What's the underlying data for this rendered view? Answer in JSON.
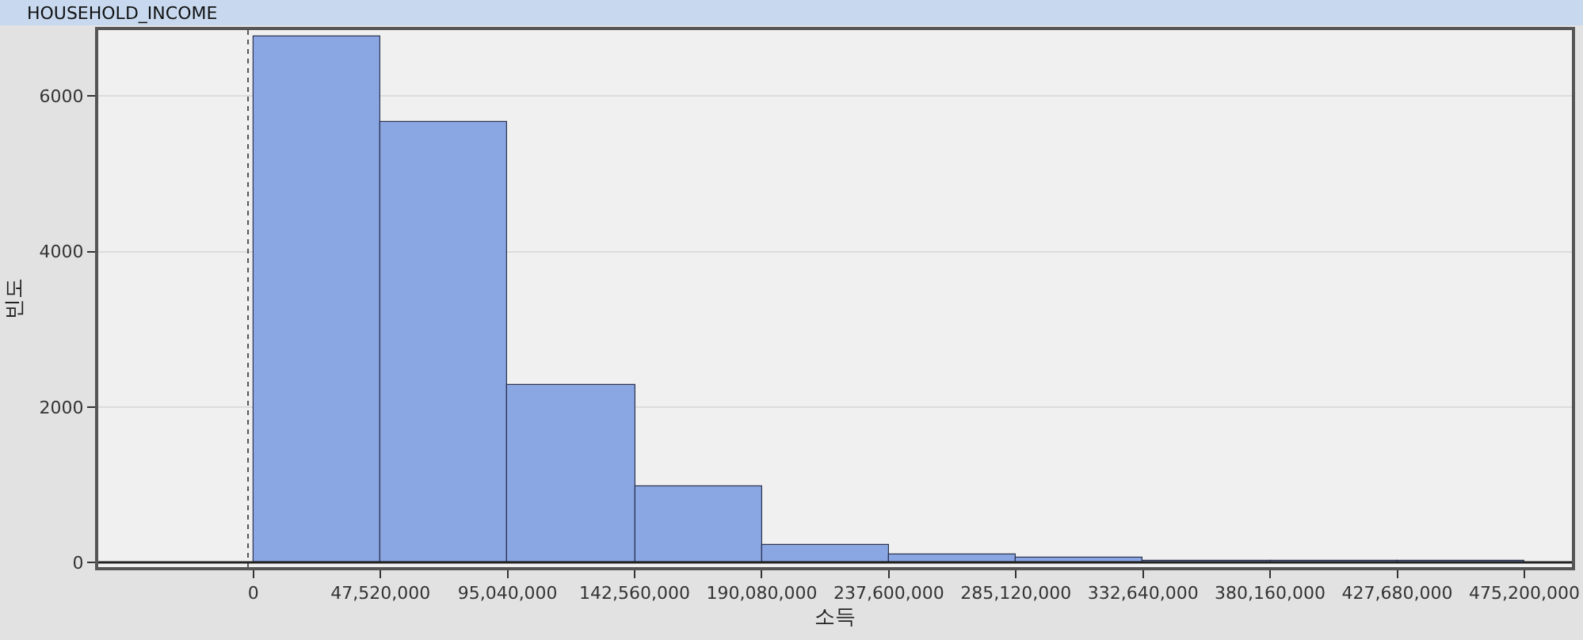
{
  "chart_data": {
    "type": "histogram",
    "title": "HOUSEHOLD_INCOME",
    "xlabel": "소득",
    "ylabel": "빈도",
    "bins": [
      0,
      47520000,
      95040000,
      142560000,
      190080000,
      237600000,
      285120000,
      332640000,
      380160000,
      427680000,
      475200000
    ],
    "values": [
      6760,
      5660,
      2290,
      970,
      230,
      100,
      60,
      30,
      20,
      20
    ],
    "color": "#8ba7e3",
    "xlim": [
      -58000000,
      493000000
    ],
    "ylim": [
      -60,
      6850
    ],
    "xticks": [
      0,
      {
        "value": 47520000,
        "label": "47,520,000"
      },
      {
        "value": 95040000,
        "label": "95,040,000"
      },
      {
        "value": 142560000,
        "label": "142,560,000"
      },
      {
        "value": 190080000,
        "label": "190,080,000"
      },
      {
        "value": 237600000,
        "label": "237,600,000"
      },
      {
        "value": 285120000,
        "label": "285,120,000"
      },
      {
        "value": 332640000,
        "label": "332,640,000"
      },
      {
        "value": 380160000,
        "label": "380,160,000"
      },
      {
        "value": 427680000,
        "label": "427,680,000"
      },
      {
        "value": 475200000,
        "label": "475,200,000"
      }
    ],
    "yticks": [
      0,
      2000,
      4000,
      6000
    ],
    "grid": "y",
    "ref_lines": [
      {
        "axis": "x",
        "value": -2000000,
        "color": "#555555",
        "line_style": "dotted"
      },
      {
        "axis": "y",
        "value": 0,
        "color": "#222222",
        "line_style": "solid"
      }
    ]
  }
}
